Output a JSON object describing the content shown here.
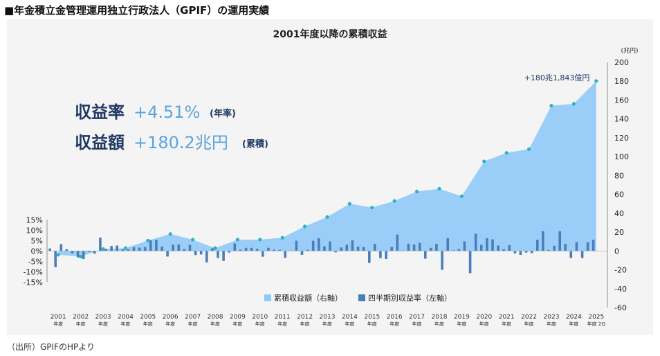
{
  "heading": "■年金積立金管理運用独立行政法人（GPIF）の運用実績",
  "source": "（出所）GPIFのHPより",
  "chart_data": {
    "type": "bar+area",
    "title": "2001年度以降の累積収益",
    "right_unit": "(兆円)",
    "highlights": [
      {
        "label": "収益率",
        "value": "+4.51%",
        "note": "(年率)"
      },
      {
        "label": "収益額",
        "value": "+180.2兆円",
        "note": "(累積)"
      }
    ],
    "annotation": "+180兆1,843億円",
    "left_axis": {
      "ticks": [
        "15%",
        "10%",
        "5%",
        "0%",
        "-5%",
        "-10%",
        "-15%"
      ],
      "ylim": [
        -15,
        15
      ]
    },
    "right_axis": {
      "ticks": [
        "200",
        "180",
        "160",
        "140",
        "120",
        "100",
        "80",
        "60",
        "40",
        "20",
        "0",
        "-20",
        "-40",
        "-60"
      ],
      "ylim": [
        -60,
        200
      ]
    },
    "categories": [
      "2001",
      "2002",
      "2003",
      "2004",
      "2005",
      "2006",
      "2007",
      "2008",
      "2009",
      "2010",
      "2011",
      "2012",
      "2013",
      "2014",
      "2015",
      "2016",
      "2017",
      "2018",
      "2019",
      "2020",
      "2021",
      "2022",
      "2023",
      "2024",
      "2025"
    ],
    "category_suffix": [
      "年度",
      "年度",
      "年度",
      "年度",
      "年度",
      "年度",
      "年度",
      "年度",
      "年度",
      "年度",
      "年度",
      "年度",
      "年度",
      "年度",
      "年度",
      "年度",
      "年度",
      "年度",
      "年度",
      "年度",
      "年度",
      "年度",
      "年度",
      "年度",
      "年度 2Q"
    ],
    "series": [
      {
        "name": "累積収益額（右軸）",
        "axis": "right",
        "kind": "area",
        "color": "#90caf9",
        "marker_color": "#2bb3c0",
        "values": [
          -4,
          -6,
          2,
          3,
          11,
          18,
          12,
          3,
          12,
          12,
          14,
          26,
          36,
          50,
          46,
          53,
          63,
          66,
          58,
          95,
          104,
          108,
          154,
          156,
          180.2
        ]
      },
      {
        "name": "四半期別収益率（左軸）",
        "axis": "left",
        "kind": "bar",
        "color": "#4a7ebb",
        "quarterly": [
          [
            1.2,
            -7.8,
            3.3,
            0.8
          ],
          [
            -1.2,
            -3.1,
            -3.9,
            -0.5
          ],
          [
            -1.3,
            6.4,
            1.0,
            2.4
          ],
          [
            2.6,
            0.8,
            0.8,
            1.8
          ],
          [
            1.6,
            1.8,
            5.2,
            5.3
          ],
          [
            2.1,
            -2.7,
            3.0,
            3.1
          ],
          [
            0.9,
            2.9,
            -2.0,
            -1.7
          ],
          [
            -5.5,
            1.3,
            -3.4,
            -4.8
          ],
          [
            -0.8,
            3.6,
            0.6,
            1.5
          ],
          [
            1.5,
            1.0,
            -2.8,
            1.5
          ],
          [
            0.6,
            0.5,
            -3.3,
            0.2
          ],
          [
            4.9,
            -1.9,
            0.6,
            4.9
          ],
          [
            6.1,
            2.2,
            4.6,
            -0.7
          ],
          [
            1.7,
            3.0,
            5.1,
            2.1
          ],
          [
            1.9,
            -5.8,
            3.4,
            -3.5
          ],
          [
            -3.9,
            1.9,
            7.9,
            0.2
          ],
          [
            3.5,
            3.1,
            3.9,
            -3.7
          ],
          [
            1.5,
            3.4,
            -9.1,
            6.1
          ],
          [
            0.3,
            0.9,
            4.6,
            -10.7
          ],
          [
            8.3,
            2.9,
            6.1,
            5.6
          ],
          [
            2.6,
            0.8,
            2.8,
            -1.2
          ],
          [
            -1.9,
            -0.8,
            -1.1,
            5.4
          ],
          [
            9.5,
            0.5,
            2.5,
            9.5
          ],
          [
            3.4,
            -3.4,
            4.3,
            -3.4
          ],
          [
            4.2,
            5.4
          ]
        ]
      }
    ],
    "legend_position": "bottom-center",
    "grid": false
  }
}
